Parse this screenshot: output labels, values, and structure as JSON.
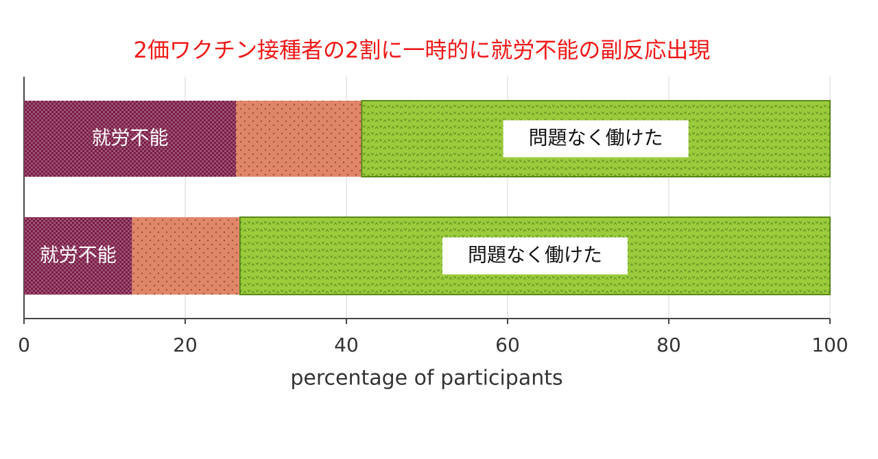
{
  "chart_data": {
    "type": "stacked_barh",
    "title": "2価ワクチン接種者の2割に一時的に就労不能の副反応出現",
    "categories": [
      null,
      null
    ],
    "series": [
      {
        "name": "就労不能",
        "color": "#7a1a45",
        "values": [
          26.3,
          13.4
        ]
      },
      {
        "color": "#e0876a",
        "values": [
          15.6,
          13.4
        ]
      },
      {
        "name": "問題なく働けた",
        "color": "#9ccc3c",
        "values": [
          58.1,
          73.2
        ]
      }
    ],
    "xlim": [
      0,
      100
    ],
    "xticks": [
      0,
      20,
      40,
      60,
      80,
      100
    ],
    "xlabel": "percentage of participants",
    "grid": true
  }
}
